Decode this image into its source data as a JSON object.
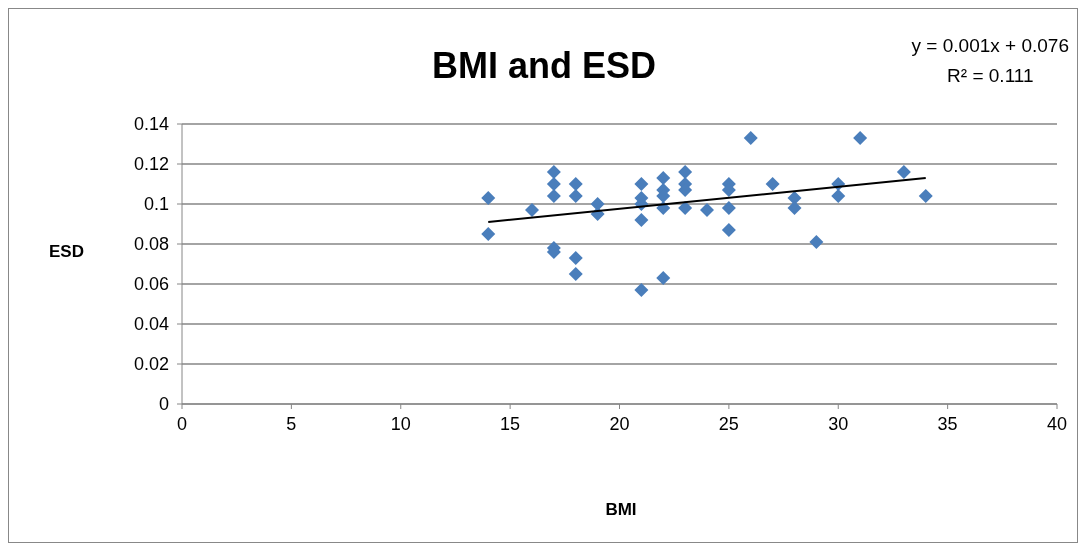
{
  "chart_data": {
    "type": "scatter",
    "title": "BMI and ESD",
    "xlabel": "BMI",
    "ylabel": "ESD",
    "annotations": [
      "y = 0.001x + 0.076",
      "R² = 0.111"
    ],
    "xlim": [
      0,
      40
    ],
    "xticks": [
      0,
      5,
      10,
      15,
      20,
      25,
      30,
      35,
      40
    ],
    "ylim": [
      0,
      0.14
    ],
    "yticks": [
      0,
      0.02,
      0.04,
      0.06,
      0.08,
      0.1,
      0.12,
      0.14
    ],
    "grid": "y",
    "marker": "diamond",
    "series": [
      {
        "color": "#4a7ebb",
        "x": [
          14,
          14,
          16,
          17,
          17,
          17,
          17,
          17,
          18,
          18,
          18,
          18,
          19,
          19,
          21,
          21,
          21,
          21,
          21,
          22,
          22,
          22,
          22,
          22,
          23,
          23,
          23,
          23,
          24,
          25,
          25,
          25,
          25,
          26,
          27,
          28,
          28,
          29,
          30,
          30,
          31,
          33,
          34
        ],
        "values": [
          0.103,
          0.085,
          0.097,
          0.116,
          0.11,
          0.104,
          0.078,
          0.076,
          0.11,
          0.104,
          0.073,
          0.065,
          0.1,
          0.095,
          0.11,
          0.103,
          0.1,
          0.092,
          0.057,
          0.113,
          0.107,
          0.104,
          0.098,
          0.063,
          0.116,
          0.11,
          0.107,
          0.098,
          0.097,
          0.11,
          0.107,
          0.098,
          0.087,
          0.133,
          0.11,
          0.103,
          0.098,
          0.081,
          0.11,
          0.104,
          0.133,
          0.116,
          0.104
        ]
      },
      {
        "type": "line",
        "color": "#000000",
        "marker": "none",
        "x": [
          14,
          34
        ],
        "values": [
          0.091,
          0.113
        ]
      }
    ]
  }
}
